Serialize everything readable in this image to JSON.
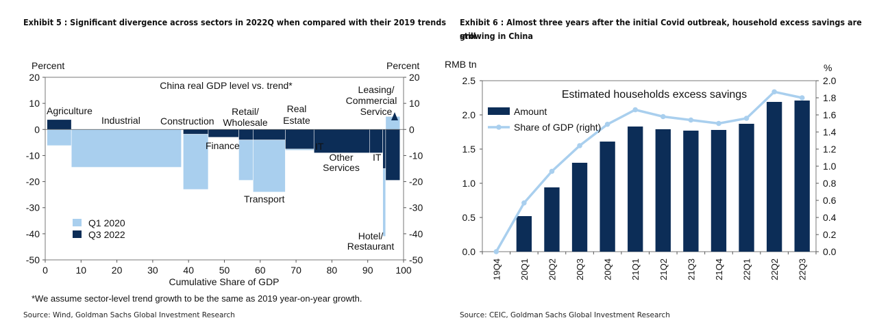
{
  "left": {
    "title": "Exhibit 5 : Significant divergence across sectors in 2022Q when compared with their 2019 trends",
    "source": "Source: Wind, Goldman Sachs Global Investment Research",
    "footnote": "*We assume sector-level trend growth to be the same as 2019 year-on-year growth.",
    "chart_data": {
      "type": "bar",
      "title": "China real GDP level vs. trend*",
      "xlabel": "Cumulative Share of GDP",
      "ylabel_left": "Percent",
      "ylabel_right": "Percent",
      "xlim": [
        0,
        100
      ],
      "ylim": [
        -50,
        20
      ],
      "xticks": [
        "0",
        "10",
        "20",
        "30",
        "40",
        "50",
        "60",
        "70",
        "80",
        "90",
        "100"
      ],
      "yticks": [
        "20",
        "10",
        "0",
        "-10",
        "-20",
        "-30",
        "-40",
        "-50"
      ],
      "legend": [
        "Q1 2020",
        "Q3 2022"
      ],
      "legend_position": "bottom-left",
      "colors": {
        "q1_2020": "#a9cfee",
        "q3_2022": "#0c2d57"
      },
      "sectors": [
        {
          "name": "Agriculture",
          "share_start": 0.5,
          "share_end": 7.3,
          "q1_2020": -6.2,
          "q3_2022": 3.8
        },
        {
          "name": "Industrial",
          "share_start": 7.3,
          "share_end": 38,
          "q1_2020": -14.5,
          "q3_2022": 0
        },
        {
          "name": "Construction",
          "share_start": 38.5,
          "share_end": 45.5,
          "q1_2020": -23,
          "q3_2022": -1.8
        },
        {
          "name": "Finance",
          "share_start": 45.5,
          "share_end": 54,
          "q1_2020": -3,
          "q3_2022": -3
        },
        {
          "name": "Retail/ Wholesale",
          "share_start": 54,
          "share_end": 58,
          "q1_2020": -19.5,
          "q3_2022": -4
        },
        {
          "name": "Transport",
          "share_start": 58,
          "share_end": 67,
          "q1_2020": -24,
          "q3_2022": -4
        },
        {
          "name": "Real Estate",
          "share_start": 67,
          "share_end": 75,
          "q1_2020": -8,
          "q3_2022": -7.5
        },
        {
          "name": "Other Services",
          "share_start": 75,
          "share_end": 90.5,
          "q1_2020": -9,
          "q3_2022": -9
        },
        {
          "name": "IT",
          "share_start": 90.5,
          "share_end": 94.2,
          "q1_2020": -9,
          "q3_2022": -9
        },
        {
          "name": "Hotel/ Restaurant",
          "share_start": 94.2,
          "share_end": 95,
          "q1_2020": -41,
          "q3_2022": -15
        },
        {
          "name": "Leasing/ Commercial Service",
          "share_start": 95,
          "share_end": 99,
          "q1_2020": 5,
          "q3_2022": -19.5
        }
      ],
      "labels": {
        "agriculture": "Agriculture",
        "industrial": "Industrial",
        "construction": "Construction",
        "finance": "Finance",
        "retail": [
          "Retail/",
          "Wholesale"
        ],
        "real_estate": [
          "Real",
          "Estate"
        ],
        "transport": "Transport",
        "it_marker": "IT",
        "other_services": [
          "Other",
          "Services"
        ],
        "it": "IT",
        "leasing": [
          "Leasing/",
          "Commercial",
          "Service"
        ],
        "hotel": [
          "Hotel/",
          "Restaurant"
        ]
      }
    }
  },
  "right": {
    "title_line1": "Exhibit 6 : Almost three years after the initial Covid outbreak, household excess savings are still",
    "title_line2": "growing in China",
    "source": "Source: CEIC, Goldman Sachs Global Investment Research",
    "chart_data": {
      "type": "bar",
      "title": "Estimated households excess savings",
      "ylabel_left": "RMB tn",
      "ylabel_right": "%",
      "categories": [
        "19Q4",
        "20Q1",
        "20Q2",
        "20Q3",
        "20Q4",
        "21Q1",
        "21Q2",
        "21Q3",
        "21Q4",
        "22Q1",
        "22Q2",
        "22Q3"
      ],
      "series": [
        {
          "name": "Amount",
          "type": "bar",
          "axis": "left",
          "color": "#0c2d57",
          "values": [
            0,
            0.52,
            0.94,
            1.3,
            1.61,
            1.83,
            1.79,
            1.77,
            1.78,
            1.87,
            2.19,
            2.21
          ]
        },
        {
          "name": "Share of GDP (right)",
          "type": "line",
          "axis": "right",
          "color": "#a9cfee",
          "values": [
            0,
            0.57,
            0.94,
            1.24,
            1.49,
            1.66,
            1.58,
            1.54,
            1.5,
            1.56,
            1.87,
            1.8
          ]
        }
      ],
      "ylim_left": [
        0,
        2.5
      ],
      "ylim_right": [
        0,
        2.0
      ],
      "yticks_left": [
        "2.5",
        "2.0",
        "1.5",
        "1.0",
        "0.5",
        "0.0"
      ],
      "yticks_right": [
        "2.0",
        "1.8",
        "1.6",
        "1.4",
        "1.2",
        "1.0",
        "0.8",
        "0.6",
        "0.4",
        "0.2",
        "0.0"
      ],
      "legend_position": "top-left"
    }
  }
}
